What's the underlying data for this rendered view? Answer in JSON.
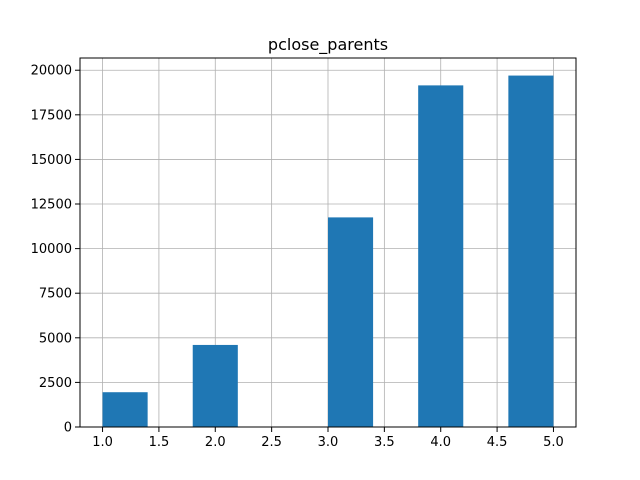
{
  "chart_data": {
    "type": "bar",
    "title": "pclose_parents",
    "xlabel": "",
    "ylabel": "",
    "bins": [
      {
        "x0": 1.0,
        "x1": 1.4,
        "value": 1950
      },
      {
        "x0": 1.4,
        "x1": 1.8,
        "value": 0
      },
      {
        "x0": 1.8,
        "x1": 2.2,
        "value": 4600
      },
      {
        "x0": 2.2,
        "x1": 2.6,
        "value": 0
      },
      {
        "x0": 2.6,
        "x1": 3.0,
        "value": 0
      },
      {
        "x0": 3.0,
        "x1": 3.4,
        "value": 11750
      },
      {
        "x0": 3.4,
        "x1": 3.8,
        "value": 0
      },
      {
        "x0": 3.8,
        "x1": 4.2,
        "value": 19150
      },
      {
        "x0": 4.2,
        "x1": 4.6,
        "value": 0
      },
      {
        "x0": 4.6,
        "x1": 5.0,
        "value": 19700
      }
    ],
    "xlim": [
      0.8,
      5.2
    ],
    "ylim": [
      0,
      20685
    ],
    "xticks": [
      1.0,
      1.5,
      2.0,
      2.5,
      3.0,
      3.5,
      4.0,
      4.5,
      5.0
    ],
    "xtick_labels": [
      "1.0",
      "1.5",
      "2.0",
      "2.5",
      "3.0",
      "3.5",
      "4.0",
      "4.5",
      "5.0"
    ],
    "yticks": [
      0,
      2500,
      5000,
      7500,
      10000,
      12500,
      15000,
      17500,
      20000
    ],
    "ytick_labels": [
      "0",
      "2500",
      "5000",
      "7500",
      "10000",
      "12500",
      "15000",
      "17500",
      "20000"
    ],
    "grid": true,
    "bar_color": "#1f77b4",
    "grid_color": "#b0b0b0"
  }
}
